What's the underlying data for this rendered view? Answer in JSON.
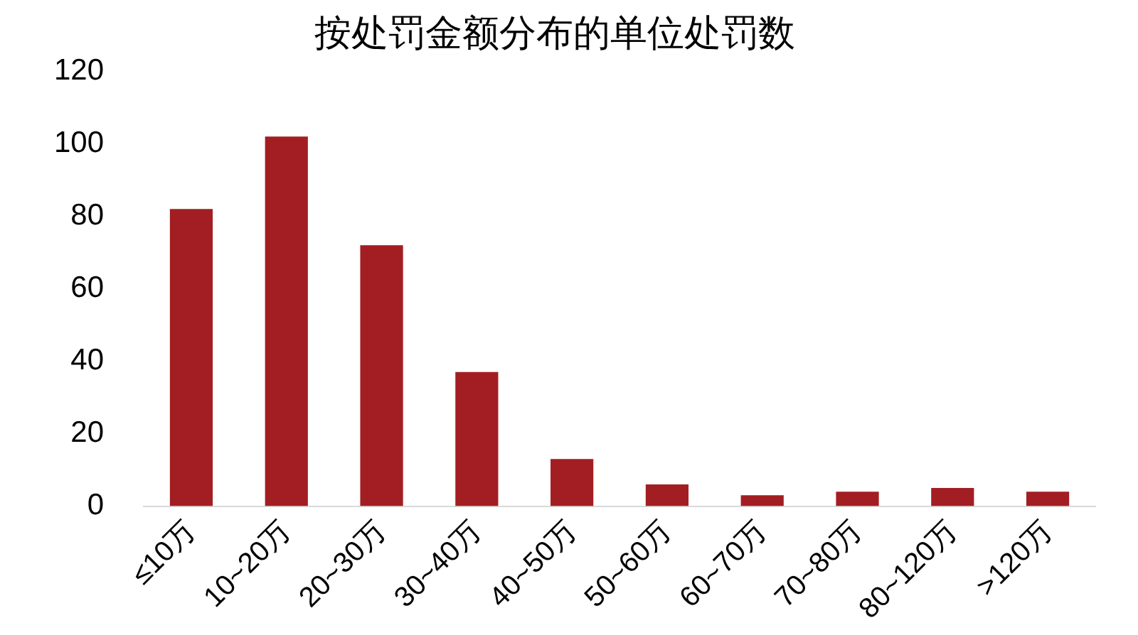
{
  "chart_data": {
    "type": "bar",
    "title": "按处罚金额分布的单位处罚数",
    "categories": [
      "≤10万",
      "10~20万",
      "20~30万",
      "30~40万",
      "40~50万",
      "50~60万",
      "60~70万",
      "70~80万",
      "80~120万",
      ">120万"
    ],
    "values": [
      82,
      102,
      72,
      37,
      13,
      6,
      3,
      4,
      5,
      4
    ],
    "color": "#a21e22",
    "ylim": [
      0,
      120
    ],
    "yticks": [
      0,
      20,
      40,
      60,
      80,
      100,
      120
    ],
    "grid": false,
    "legend": false
  }
}
